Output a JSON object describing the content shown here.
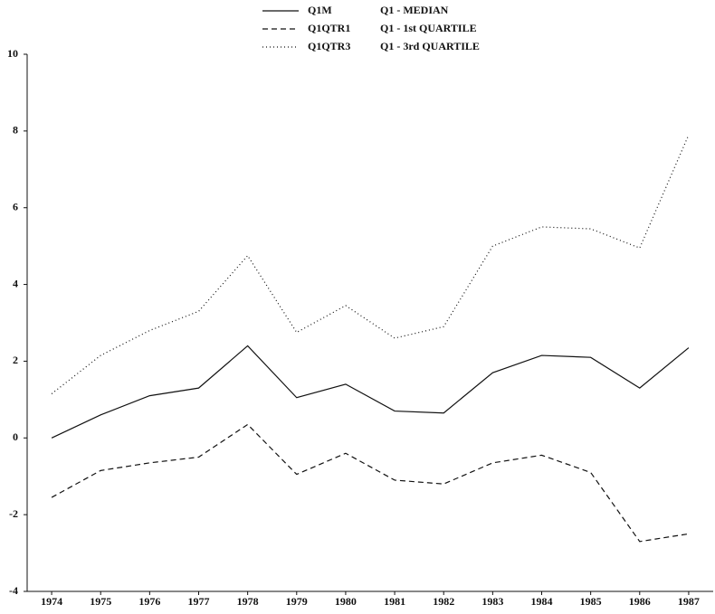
{
  "chart_data": {
    "type": "line",
    "categories": [
      "1974",
      "1975",
      "1976",
      "1977",
      "1978",
      "1979",
      "1980",
      "1981",
      "1982",
      "1983",
      "1984",
      "1985",
      "1986",
      "1987"
    ],
    "series": [
      {
        "name": "Q1M",
        "description": "Q1 - MEDIAN",
        "color": "#111111",
        "dash": "none",
        "values": [
          0.0,
          0.6,
          1.1,
          1.3,
          2.4,
          1.05,
          1.4,
          0.7,
          0.65,
          1.7,
          2.15,
          2.1,
          1.3,
          2.35
        ]
      },
      {
        "name": "Q1QTR1",
        "description": "Q1 - 1st QUARTILE",
        "color": "#111111",
        "dash": "6 4",
        "values": [
          -1.55,
          -0.85,
          -0.65,
          -0.5,
          0.35,
          -0.95,
          -0.4,
          -1.1,
          -1.2,
          -0.65,
          -0.45,
          -0.9,
          -2.7,
          -2.5
        ]
      },
      {
        "name": "Q1QTR3",
        "description": "Q1 - 3rd QUARTILE",
        "color": "#111111",
        "dash": "1 3",
        "values": [
          1.15,
          2.15,
          2.8,
          3.3,
          4.75,
          2.75,
          3.45,
          2.6,
          2.9,
          5.0,
          5.5,
          5.45,
          4.95,
          7.9
        ]
      }
    ],
    "ylim": [
      -4,
      10
    ],
    "yticks": [
      -4,
      -2,
      0,
      2,
      4,
      6,
      8,
      10
    ],
    "grid": false
  }
}
